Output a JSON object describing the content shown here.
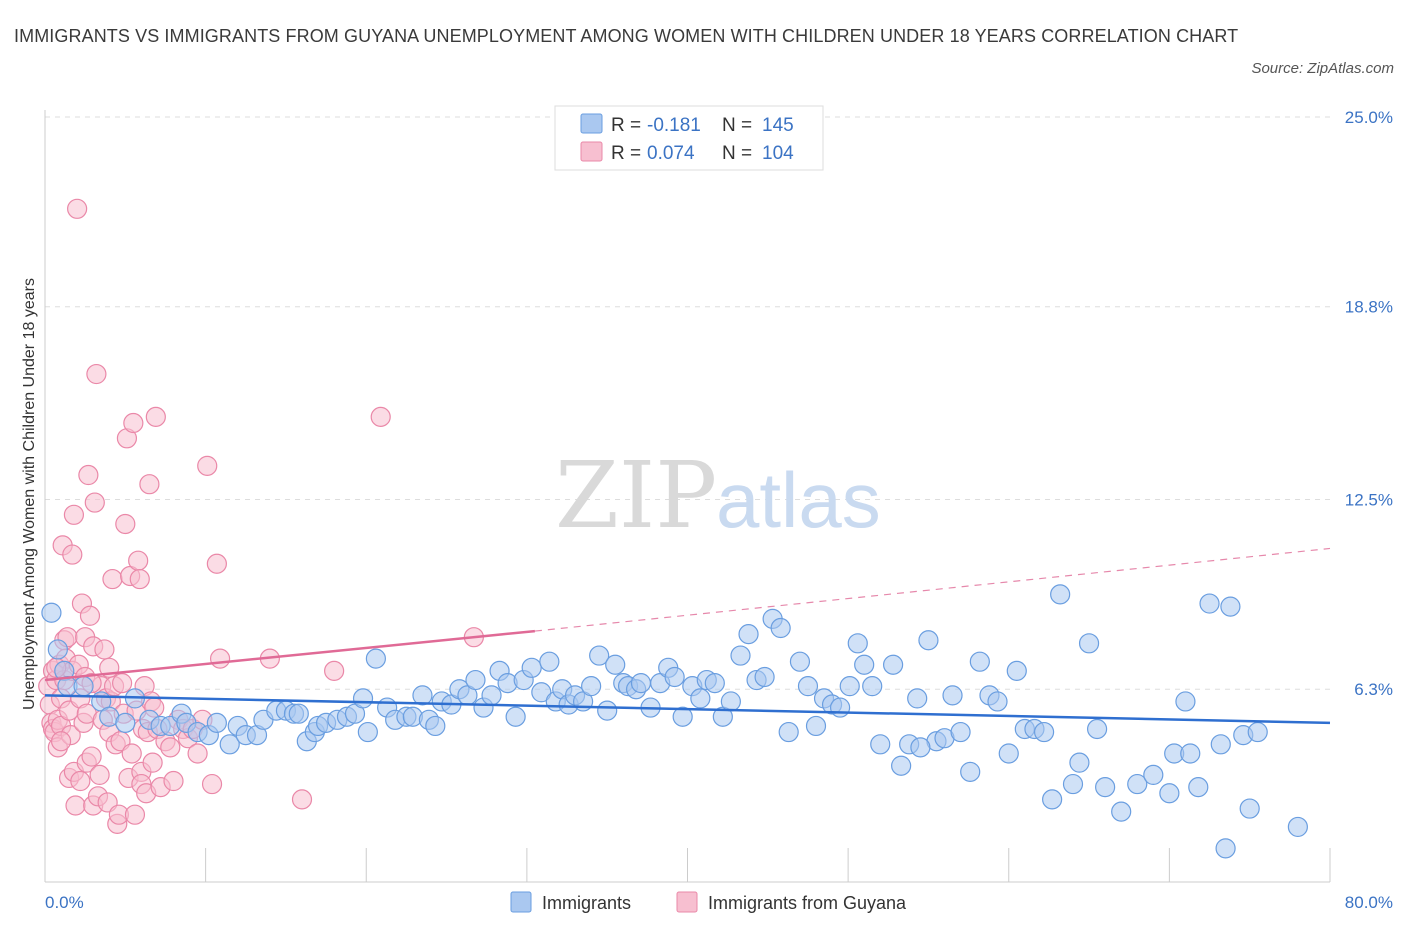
{
  "title": "IMMIGRANTS VS IMMIGRANTS FROM GUYANA UNEMPLOYMENT AMONG WOMEN WITH CHILDREN UNDER 18 YEARS CORRELATION CHART",
  "source": "Source: ZipAtlas.com",
  "watermark": {
    "zip": "ZIP",
    "atlas": "atlas"
  },
  "legend": {
    "r_label": "R =",
    "n_label": "N =",
    "immigrants": {
      "r": "-0.181",
      "n": "145"
    },
    "guyana": {
      "r": "0.074",
      "n": "104"
    }
  },
  "colors": {
    "immigrants_fill": "#aac8f0",
    "immigrants_stroke": "#6a9ee0",
    "immigrants_line": "#2f6fd0",
    "guyana_fill": "#f7bfd0",
    "guyana_stroke": "#ea88a8",
    "guyana_line": "#e06a96",
    "grid": "#dddddd",
    "axis_text": "#3b73c4"
  },
  "chart_data": {
    "type": "scatter",
    "title": "IMMIGRANTS VS IMMIGRANTS FROM GUYANA UNEMPLOYMENT AMONG WOMEN WITH CHILDREN UNDER 18 YEARS CORRELATION CHART",
    "xlabel": "",
    "ylabel": "Unemployment Among Women with Children Under 18 years",
    "xlim": [
      0,
      80
    ],
    "ylim": [
      0,
      25
    ],
    "x_tick_labels": [
      "0.0%",
      "80.0%"
    ],
    "y_ticks": [
      6.3,
      12.5,
      18.8,
      25.0
    ],
    "y_tick_labels": [
      "6.3%",
      "12.5%",
      "18.8%",
      "25.0%"
    ],
    "grid": true,
    "legend_position": "top-center",
    "series": [
      {
        "name": "Immigrants",
        "trend": {
          "x": [
            0,
            80
          ],
          "y": [
            6.1,
            5.2
          ],
          "style": "solid"
        },
        "points": [
          [
            0.4,
            8.8
          ],
          [
            0.8,
            7.6
          ],
          [
            1.2,
            6.9
          ],
          [
            1.4,
            6.4
          ],
          [
            2.4,
            6.4
          ],
          [
            3.5,
            5.9
          ],
          [
            4.0,
            5.4
          ],
          [
            5.0,
            5.2
          ],
          [
            5.6,
            6.0
          ],
          [
            6.5,
            5.3
          ],
          [
            7.2,
            5.1
          ],
          [
            7.8,
            5.1
          ],
          [
            8.5,
            5.5
          ],
          [
            8.8,
            5.2
          ],
          [
            9.5,
            4.9
          ],
          [
            10.2,
            4.8
          ],
          [
            10.7,
            5.2
          ],
          [
            11.5,
            4.5
          ],
          [
            12.0,
            5.1
          ],
          [
            12.5,
            4.8
          ],
          [
            13.2,
            4.8
          ],
          [
            13.6,
            5.3
          ],
          [
            14.4,
            5.6
          ],
          [
            15.0,
            5.6
          ],
          [
            15.5,
            5.5
          ],
          [
            15.8,
            5.5
          ],
          [
            16.3,
            4.6
          ],
          [
            16.8,
            4.9
          ],
          [
            17.0,
            5.1
          ],
          [
            17.5,
            5.2
          ],
          [
            18.2,
            5.3
          ],
          [
            18.8,
            5.4
          ],
          [
            19.3,
            5.5
          ],
          [
            19.8,
            6.0
          ],
          [
            20.1,
            4.9
          ],
          [
            20.6,
            7.3
          ],
          [
            21.3,
            5.7
          ],
          [
            21.8,
            5.3
          ],
          [
            22.5,
            5.4
          ],
          [
            22.9,
            5.4
          ],
          [
            23.5,
            6.1
          ],
          [
            23.9,
            5.3
          ],
          [
            24.3,
            5.1
          ],
          [
            24.7,
            5.9
          ],
          [
            25.3,
            5.8
          ],
          [
            25.8,
            6.3
          ],
          [
            26.3,
            6.1
          ],
          [
            26.8,
            6.6
          ],
          [
            27.3,
            5.7
          ],
          [
            27.8,
            6.1
          ],
          [
            28.3,
            6.9
          ],
          [
            28.8,
            6.5
          ],
          [
            29.3,
            5.4
          ],
          [
            29.8,
            6.6
          ],
          [
            30.3,
            7.0
          ],
          [
            30.9,
            6.2
          ],
          [
            31.4,
            7.2
          ],
          [
            31.8,
            5.9
          ],
          [
            32.2,
            6.3
          ],
          [
            32.6,
            5.8
          ],
          [
            33.0,
            6.1
          ],
          [
            33.5,
            5.9
          ],
          [
            34.0,
            6.4
          ],
          [
            34.5,
            7.4
          ],
          [
            35.0,
            5.6
          ],
          [
            35.5,
            7.1
          ],
          [
            36.0,
            6.5
          ],
          [
            36.3,
            6.4
          ],
          [
            36.8,
            6.3
          ],
          [
            37.1,
            6.5
          ],
          [
            37.7,
            5.7
          ],
          [
            38.3,
            6.5
          ],
          [
            38.8,
            7.0
          ],
          [
            39.2,
            6.7
          ],
          [
            39.7,
            5.4
          ],
          [
            40.3,
            6.4
          ],
          [
            40.8,
            6.0
          ],
          [
            41.2,
            6.6
          ],
          [
            41.7,
            6.5
          ],
          [
            42.2,
            5.4
          ],
          [
            42.7,
            5.9
          ],
          [
            43.3,
            7.4
          ],
          [
            43.8,
            8.1
          ],
          [
            44.3,
            6.6
          ],
          [
            44.8,
            6.7
          ],
          [
            45.3,
            8.6
          ],
          [
            45.8,
            8.3
          ],
          [
            46.3,
            4.9
          ],
          [
            47.0,
            7.2
          ],
          [
            47.5,
            6.4
          ],
          [
            48.0,
            5.1
          ],
          [
            48.5,
            6.0
          ],
          [
            49.0,
            5.8
          ],
          [
            49.5,
            5.7
          ],
          [
            50.1,
            6.4
          ],
          [
            50.6,
            7.8
          ],
          [
            51.0,
            7.1
          ],
          [
            51.5,
            6.4
          ],
          [
            52.0,
            4.5
          ],
          [
            52.8,
            7.1
          ],
          [
            53.3,
            3.8
          ],
          [
            53.8,
            4.5
          ],
          [
            54.3,
            6.0
          ],
          [
            55.0,
            7.9
          ],
          [
            55.5,
            4.6
          ],
          [
            56.0,
            4.7
          ],
          [
            56.5,
            6.1
          ],
          [
            57.0,
            4.9
          ],
          [
            57.6,
            3.6
          ],
          [
            58.2,
            7.2
          ],
          [
            58.8,
            6.1
          ],
          [
            59.3,
            5.9
          ],
          [
            60.0,
            4.2
          ],
          [
            60.5,
            6.9
          ],
          [
            61.0,
            5.0
          ],
          [
            61.6,
            5.0
          ],
          [
            62.2,
            4.9
          ],
          [
            62.7,
            2.7
          ],
          [
            63.2,
            9.4
          ],
          [
            64.0,
            3.2
          ],
          [
            64.4,
            3.9
          ],
          [
            65.0,
            7.8
          ],
          [
            65.5,
            5.0
          ],
          [
            66.0,
            3.1
          ],
          [
            67.0,
            2.3
          ],
          [
            68.0,
            3.2
          ],
          [
            69.0,
            3.5
          ],
          [
            70.0,
            2.9
          ],
          [
            70.3,
            4.2
          ],
          [
            71.0,
            5.9
          ],
          [
            71.3,
            4.2
          ],
          [
            71.8,
            3.1
          ],
          [
            72.5,
            9.1
          ],
          [
            73.2,
            4.5
          ],
          [
            73.5,
            1.1
          ],
          [
            73.8,
            9.0
          ],
          [
            74.6,
            4.8
          ],
          [
            75.0,
            2.4
          ],
          [
            75.5,
            4.9
          ],
          [
            78.0,
            1.8
          ],
          [
            54.5,
            4.4
          ]
        ]
      },
      {
        "name": "Immigrants from Guyana",
        "trend": {
          "x": [
            0,
            30.5
          ],
          "y": [
            6.6,
            8.2
          ],
          "style": "solid",
          "extended": {
            "x": [
              30.5,
              80
            ],
            "y": [
              8.2,
              10.9
            ],
            "style": "dashed"
          }
        },
        "points": [
          [
            0.2,
            6.4
          ],
          [
            0.3,
            5.8
          ],
          [
            0.4,
            5.2
          ],
          [
            0.5,
            6.9
          ],
          [
            0.5,
            5.0
          ],
          [
            0.6,
            4.9
          ],
          [
            0.7,
            6.6
          ],
          [
            0.8,
            5.3
          ],
          [
            0.8,
            4.4
          ],
          [
            0.9,
            7.1
          ],
          [
            1.0,
            5.1
          ],
          [
            1.0,
            6.0
          ],
          [
            1.1,
            11.0
          ],
          [
            1.2,
            7.9
          ],
          [
            1.2,
            6.6
          ],
          [
            1.3,
            7.3
          ],
          [
            1.4,
            8.0
          ],
          [
            1.5,
            5.6
          ],
          [
            1.5,
            3.4
          ],
          [
            1.6,
            4.8
          ],
          [
            1.7,
            10.7
          ],
          [
            1.7,
            6.9
          ],
          [
            1.8,
            12.0
          ],
          [
            1.8,
            3.6
          ],
          [
            1.9,
            2.5
          ],
          [
            2.0,
            22.0
          ],
          [
            2.1,
            7.1
          ],
          [
            2.2,
            6.0
          ],
          [
            2.2,
            3.3
          ],
          [
            2.3,
            9.1
          ],
          [
            2.4,
            5.2
          ],
          [
            2.5,
            6.7
          ],
          [
            2.5,
            8.0
          ],
          [
            2.6,
            3.9
          ],
          [
            2.6,
            5.5
          ],
          [
            2.7,
            13.3
          ],
          [
            2.8,
            8.7
          ],
          [
            2.9,
            4.1
          ],
          [
            3.0,
            2.5
          ],
          [
            3.0,
            7.7
          ],
          [
            3.1,
            12.4
          ],
          [
            3.2,
            16.6
          ],
          [
            3.3,
            2.8
          ],
          [
            3.4,
            3.5
          ],
          [
            3.5,
            6.4
          ],
          [
            3.6,
            5.3
          ],
          [
            3.7,
            7.6
          ],
          [
            3.8,
            6.0
          ],
          [
            3.9,
            2.6
          ],
          [
            4.0,
            4.9
          ],
          [
            4.0,
            7.0
          ],
          [
            4.1,
            5.9
          ],
          [
            4.2,
            9.9
          ],
          [
            4.3,
            6.4
          ],
          [
            4.4,
            4.5
          ],
          [
            4.5,
            1.9
          ],
          [
            4.6,
            2.2
          ],
          [
            4.7,
            4.6
          ],
          [
            4.8,
            6.5
          ],
          [
            4.9,
            5.5
          ],
          [
            5.0,
            11.7
          ],
          [
            5.1,
            14.5
          ],
          [
            5.2,
            3.4
          ],
          [
            5.3,
            10.0
          ],
          [
            5.4,
            4.2
          ],
          [
            5.5,
            15.0
          ],
          [
            5.6,
            2.2
          ],
          [
            5.7,
            5.6
          ],
          [
            5.8,
            10.5
          ],
          [
            5.9,
            9.9
          ],
          [
            6.0,
            3.6
          ],
          [
            6.0,
            3.2
          ],
          [
            6.1,
            5.0
          ],
          [
            6.2,
            6.4
          ],
          [
            6.3,
            2.9
          ],
          [
            6.4,
            4.9
          ],
          [
            6.5,
            13.0
          ],
          [
            6.6,
            5.9
          ],
          [
            6.7,
            3.9
          ],
          [
            6.8,
            5.7
          ],
          [
            6.9,
            15.2
          ],
          [
            7.0,
            5.0
          ],
          [
            7.2,
            3.1
          ],
          [
            7.5,
            4.6
          ],
          [
            7.8,
            4.4
          ],
          [
            8.0,
            3.3
          ],
          [
            8.3,
            5.3
          ],
          [
            8.6,
            5.0
          ],
          [
            8.9,
            4.7
          ],
          [
            9.2,
            5.0
          ],
          [
            9.5,
            4.2
          ],
          [
            9.8,
            5.3
          ],
          [
            10.1,
            13.6
          ],
          [
            10.4,
            3.2
          ],
          [
            10.7,
            10.4
          ],
          [
            10.9,
            7.3
          ],
          [
            14.0,
            7.3
          ],
          [
            16.0,
            2.7
          ],
          [
            18.0,
            6.9
          ],
          [
            20.9,
            15.2
          ],
          [
            26.7,
            8.0
          ],
          [
            1.0,
            4.6
          ],
          [
            2.9,
            6.5
          ],
          [
            0.7,
            7.0
          ]
        ]
      }
    ]
  }
}
